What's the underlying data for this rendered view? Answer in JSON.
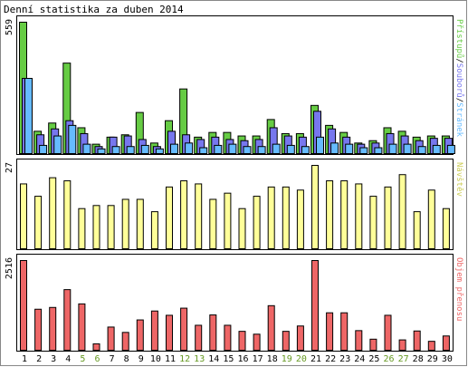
{
  "title": "Denní statistika za duben 2014",
  "colors": {
    "hits": "#66cc44",
    "files": "#7777ee",
    "pages": "#66bbff",
    "visits": "#ffff99",
    "kbytes": "#ee6666",
    "weekday_label": "#000000",
    "weekend_label": "#669922"
  },
  "panels": {
    "top": {
      "max_label": "559",
      "legend": [
        {
          "text": "Přístupů",
          "color": "#66cc44"
        },
        {
          "text": "/",
          "color": "#000000"
        },
        {
          "text": "Souborů",
          "color": "#7777ee"
        },
        {
          "text": "/",
          "color": "#000000"
        },
        {
          "text": "Stránek",
          "color": "#66bbff"
        }
      ]
    },
    "middle": {
      "max_label": "27",
      "legend": [
        {
          "text": "Návštěv",
          "color": "#cccc55"
        }
      ]
    },
    "bottom": {
      "max_label": "2516",
      "legend": [
        {
          "text": "Objem přenosu",
          "color": "#ee6666"
        }
      ]
    }
  },
  "chart_data": {
    "type": "bar",
    "title": "Denní statistika za duben 2014",
    "categories": [
      "1",
      "2",
      "3",
      "4",
      "5",
      "6",
      "7",
      "8",
      "9",
      "10",
      "11",
      "12",
      "13",
      "14",
      "15",
      "16",
      "17",
      "18",
      "19",
      "20",
      "21",
      "22",
      "23",
      "24",
      "25",
      "26",
      "27",
      "28",
      "29",
      "30"
    ],
    "weekend_days": [
      "5",
      "6",
      "12",
      "13",
      "19",
      "20",
      "26",
      "27"
    ],
    "charts": [
      {
        "name": "top",
        "max_value": 559,
        "series": [
          {
            "name": "Přístupů",
            "values": [
              559,
              95,
              130,
              385,
              110,
              40,
              70,
              80,
              175,
              45,
              140,
              275,
              70,
              90,
              90,
              75,
              75,
              145,
              85,
              85,
              205,
              120,
              90,
              45,
              55,
              110,
              95,
              70,
              75,
              75
            ]
          },
          {
            "name": "Souborů",
            "values": [
              320,
              80,
              105,
              140,
              85,
              30,
              70,
              75,
              60,
              30,
              95,
              80,
              60,
              70,
              60,
              55,
              60,
              110,
              75,
              70,
              180,
              105,
              70,
              40,
              45,
              85,
              75,
              55,
              65,
              65
            ]
          },
          {
            "name": "Stránek",
            "values": [
              320,
              35,
              75,
              120,
              40,
              20,
              30,
              30,
              35,
              20,
              40,
              45,
              25,
              35,
              40,
              30,
              30,
              40,
              35,
              30,
              70,
              45,
              40,
              25,
              25,
              40,
              40,
              30,
              35,
              35
            ]
          }
        ]
      },
      {
        "name": "middle",
        "max_value": 27,
        "series": [
          {
            "name": "Návštěv",
            "values": [
              21,
              17,
              23,
              22,
              13,
              14,
              14,
              16,
              16,
              12,
              20,
              22,
              21,
              16,
              18,
              13,
              17,
              20,
              20,
              19,
              27,
              22,
              22,
              21,
              17,
              20,
              24,
              12,
              19,
              13
            ]
          }
        ]
      },
      {
        "name": "bottom",
        "max_value": 2516,
        "series": [
          {
            "name": "Objem přenosu",
            "values": [
              2516,
              1150,
              1200,
              1700,
              1300,
              180,
              650,
              500,
              850,
              1100,
              980,
              1180,
              700,
              990,
              700,
              530,
              450,
              1250,
              530,
              680,
              2516,
              1050,
              1050,
              550,
              310,
              980,
              290,
              540,
              250,
              400
            ]
          }
        ]
      }
    ]
  }
}
